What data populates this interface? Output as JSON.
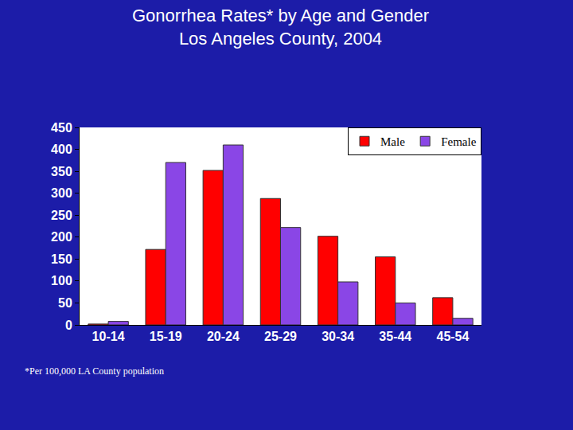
{
  "chart_data": {
    "type": "bar",
    "title": "Gonorrhea Rates* by Age and Gender\nLos Angeles County, 2004",
    "annotations": [
      "*Per 100,000 LA County population"
    ],
    "categories": [
      "10-14",
      "15-19",
      "20-24",
      "25-29",
      "30-34",
      "35-44",
      "45-54"
    ],
    "series": [
      {
        "name": "Male",
        "color": "#ff0000",
        "values": [
          2,
          172,
          352,
          288,
          202,
          155,
          62
        ]
      },
      {
        "name": "Female",
        "color": "#8a46e6",
        "values": [
          8,
          370,
          410,
          222,
          98,
          50,
          15
        ]
      }
    ],
    "ylim": [
      0,
      450
    ],
    "yticks": [
      0,
      50,
      100,
      150,
      200,
      250,
      300,
      350,
      400,
      450
    ],
    "grid": false,
    "legend": "upper right"
  }
}
